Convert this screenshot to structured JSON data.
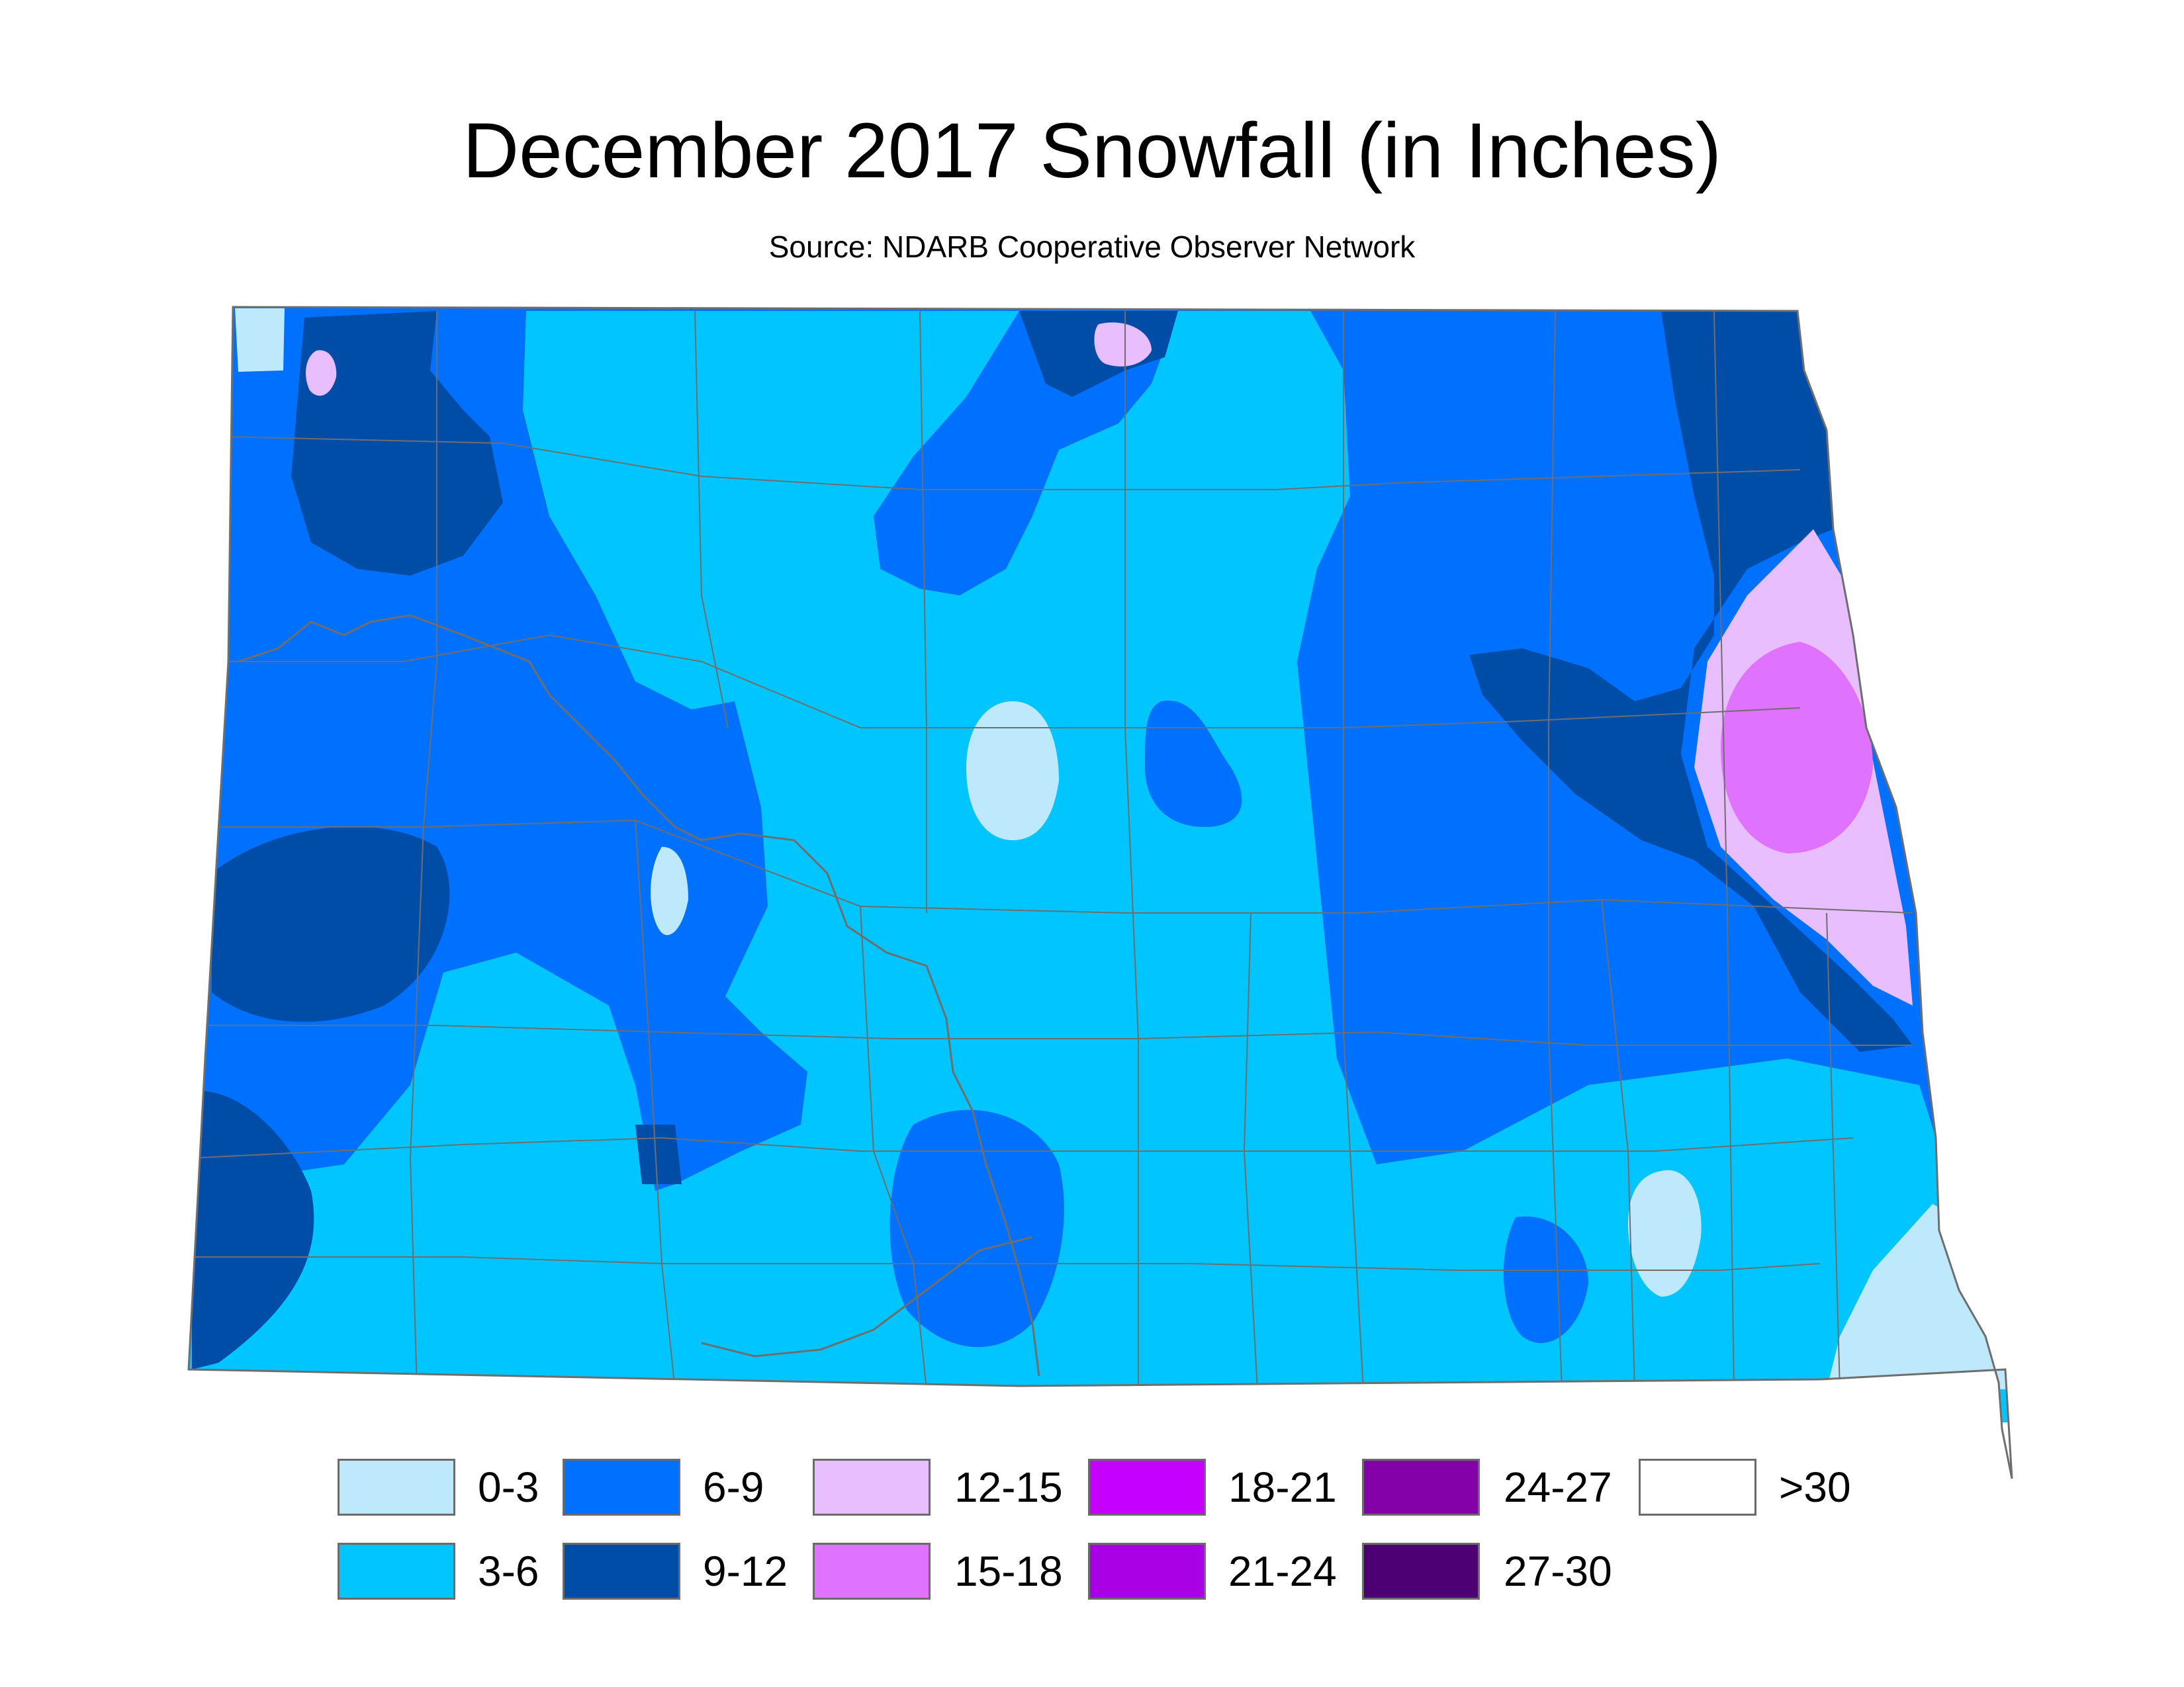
{
  "map": {
    "title": "December 2017 Snowfall (in Inches)",
    "subtitle": "Source: NDARB Cooperative Observer Network"
  },
  "colors": {
    "0_3": "#bee8fc",
    "3_6": "#00c5ff",
    "6_9": "#0070ff",
    "9_12": "#004da8",
    "12_15": "#e8beff",
    "15_18": "#df73ff",
    "18_21": "#c500ff",
    "21_24": "#a900e6",
    "24_27": "#8400a8",
    "27_30": "#4c0073",
    "over_30": "#ffffff",
    "county_lines": "#6e6e6e"
  },
  "legend": [
    {
      "label": "0-3",
      "color": "#bee8fc"
    },
    {
      "label": "3-6",
      "color": "#00c5ff"
    },
    {
      "label": "6-9",
      "color": "#0070ff"
    },
    {
      "label": "9-12",
      "color": "#004da8"
    },
    {
      "label": "12-15",
      "color": "#e8beff"
    },
    {
      "label": "15-18",
      "color": "#df73ff"
    },
    {
      "label": "18-21",
      "color": "#c500ff"
    },
    {
      "label": "21-24",
      "color": "#a900e6"
    },
    {
      "label": "24-27",
      "color": "#8400a8"
    },
    {
      "label": "27-30",
      "color": "#4c0073"
    },
    {
      "label": ">30",
      "color": "#ffffff"
    }
  ]
}
